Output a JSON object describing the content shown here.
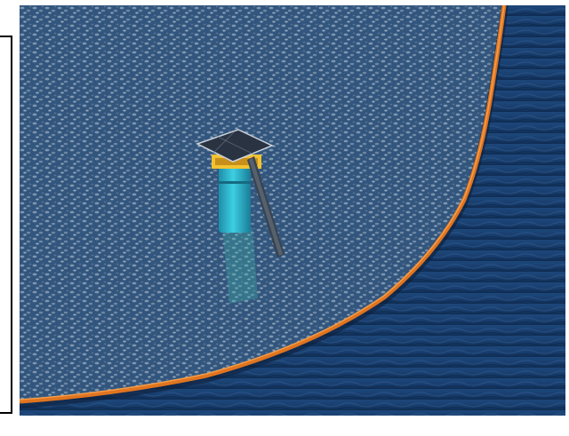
{
  "image": {
    "colors": {
      "ocean_deep": "#0f2e5a",
      "ocean_mid": "#24507f",
      "debris": "#9fb3c8",
      "boom": "#e0741f",
      "buoy": "#27b3c9",
      "panel": "#2a3342",
      "frame": "#f2c230"
    }
  }
}
